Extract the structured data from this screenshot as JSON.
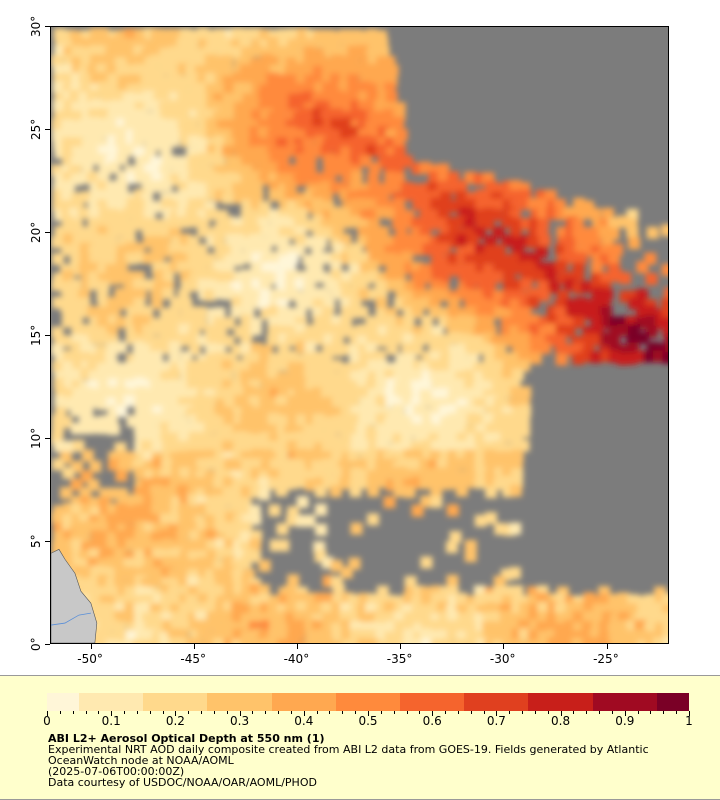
{
  "map": {
    "lon_range": [
      -52,
      -22
    ],
    "lat_range": [
      0,
      30
    ],
    "lon_ticks": [
      {
        "value": -50,
        "label": "-50°"
      },
      {
        "value": -45,
        "label": "-45°"
      },
      {
        "value": -40,
        "label": "-40°"
      },
      {
        "value": -35,
        "label": "-35°"
      },
      {
        "value": -30,
        "label": "-30°"
      },
      {
        "value": -25,
        "label": "-25°"
      }
    ],
    "lat_ticks": [
      {
        "value": 0,
        "label": "0°"
      },
      {
        "value": 5,
        "label": "5°"
      },
      {
        "value": 10,
        "label": "10°"
      },
      {
        "value": 15,
        "label": "15°"
      },
      {
        "value": 20,
        "label": "20°"
      },
      {
        "value": 25,
        "label": "25°"
      },
      {
        "value": 30,
        "label": "30°"
      }
    ],
    "colors": {
      "no_data": "#7c7c7c",
      "land": "#c8c8c8",
      "scale": [
        "#fff6d8",
        "#ffe9b0",
        "#ffd98c",
        "#ffc36a",
        "#ffa850",
        "#ff8a3c",
        "#f5642d",
        "#e0401f",
        "#c81f1a",
        "#a00a22",
        "#7a0026"
      ]
    }
  },
  "legend": {
    "colorbar_ticks": [
      "0",
      "0.1",
      "0.2",
      "0.3",
      "0.4",
      "0.5",
      "0.6",
      "0.7",
      "0.8",
      "0.9",
      "1"
    ],
    "title": "ABI L2+ Aerosol Optical Depth at 550 nm (1)",
    "line1": "Experimental NRT AOD daily composite created from ABI L2 data from GOES-19. Fields generated by Atlantic OceanWatch node at NOAA/AOML",
    "line2": "(2025-07-06T00:00:00Z)",
    "line3": "Data courtesy of USDOC/NOAA/OAR/AOML/PHOD"
  }
}
